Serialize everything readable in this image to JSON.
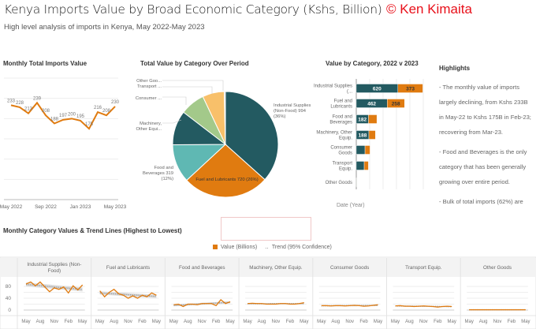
{
  "header": {
    "title": "Kenya Imports Value by Broad Economic Category (Kshs, Billion)",
    "copyright": "© Ken Kimaita",
    "subtitle": "High level analysis of imports in Kenya, May 2022-May 2023"
  },
  "colors": {
    "orange": "#e07b10",
    "dark_teal": "#235a61",
    "light_teal": "#5fb8b3",
    "green": "#a3c98a",
    "yellow": "#f8c06a",
    "other_gray": "#c8c8c8",
    "copyright_red": "#e8101a"
  },
  "highlights": {
    "title": "Highlights",
    "paragraphs": [
      "- The monthly value of imports largely declining, from Kshs 233B in May-22 to Kshs 175B in Feb-23; recovering from Mar-23.",
      "- Food and Beverages is the only category that has been generally growing over entire period.",
      "- Bulk of total imports (62%) are from Industrial Supplies-Non Food (36%, Kshs 994B), and Fuel and Lubricants (26%, Kshs 720B). The"
    ]
  },
  "legend": {
    "value_label": "Value (Billions)",
    "trend_label": "Trend (95% Confidence)"
  },
  "chart_data": [
    {
      "type": "line",
      "title": "Monthly Total Imports Value",
      "x": [
        "May 2022",
        "Jun 2022",
        "Jul 2022",
        "Aug 2022",
        "Sep 2022",
        "Oct 2022",
        "Nov 2022",
        "Dec 2022",
        "Jan 2023",
        "Feb 2023",
        "Mar 2023",
        "Apr 2023",
        "May 2023"
      ],
      "values": [
        233,
        228,
        213,
        239,
        208,
        188,
        197,
        200,
        195,
        175,
        216,
        208,
        230
      ],
      "x_tick_labels": [
        "May 2022",
        "Sep 2022",
        "Jan 2023",
        "May 2023"
      ],
      "ylim": [
        0,
        300
      ],
      "grid": true
    },
    {
      "type": "pie",
      "title": "Total Value by Category Over Period",
      "slices": [
        {
          "name": "Industrial Supplies (Non-Food)",
          "value": 994,
          "label": "Industrial Supplies (Non-Food) 994 (36%)"
        },
        {
          "name": "Fuel and Lubricants",
          "value": 720,
          "label": "Fuel and Lubricants 720 (26%)"
        },
        {
          "name": "Food and Beverages",
          "value": 319,
          "label": "Food and Beverages 319 (12%)"
        },
        {
          "name": "Machinery, Other Equip.",
          "value": 286,
          "label": "Machinery, Other Equi..."
        },
        {
          "name": "Consumer Goods",
          "value": 205,
          "label": "Consumer ..."
        },
        {
          "name": "Transport Equip.",
          "value": 181,
          "label": "Transport ..."
        },
        {
          "name": "Other Goods",
          "value": 10,
          "label": "Other Goo..."
        }
      ]
    },
    {
      "type": "bar",
      "title": "Value by Category, 2022 v 2023",
      "xlabel": "Date (Year)",
      "categories": [
        "Industrial Supplies (...",
        "Fuel and Lubricants",
        "Food and Beverages",
        "Machinery, Other Equip.",
        "Consumer Goods",
        "Transport Equip.",
        "Other Goods"
      ],
      "series": [
        {
          "values": [
            620,
            462,
            182,
            188,
            130,
            118,
            6
          ],
          "data_labels": [
            "620",
            "462",
            "182",
            "188",
            "",
            "",
            ""
          ]
        },
        {
          "values": [
            373,
            258,
            125,
            98,
            75,
            63,
            2
          ],
          "data_labels": [
            "373",
            "258",
            "",
            "",
            "",
            "",
            ""
          ]
        }
      ],
      "stacked": true,
      "grid": true
    },
    {
      "type": "line",
      "title": "Monthly Category Values & Trend Lines (Highest to Lowest)",
      "y_ticks": [
        "80",
        "40",
        "0"
      ],
      "ylim": [
        0,
        100
      ],
      "x_tick_labels": [
        "May",
        "Aug",
        "Nov",
        "Feb",
        "May"
      ],
      "panels": [
        {
          "name": "Industrial Supplies (Non-Food)",
          "values": [
            88,
            95,
            82,
            95,
            78,
            62,
            75,
            70,
            78,
            58,
            82,
            68,
            85
          ]
        },
        {
          "name": "Fuel and Lubricants",
          "values": [
            65,
            45,
            60,
            70,
            55,
            50,
            40,
            48,
            40,
            50,
            45,
            58,
            50
          ]
        },
        {
          "name": "Food and Beverages",
          "values": [
            18,
            20,
            12,
            20,
            20,
            18,
            22,
            22,
            22,
            15,
            35,
            22,
            28
          ]
        },
        {
          "name": "Machinery, Other Equip.",
          "values": [
            22,
            23,
            22,
            22,
            20,
            20,
            20,
            22,
            22,
            20,
            20,
            22,
            25
          ]
        },
        {
          "name": "Consumer Goods",
          "values": [
            15,
            15,
            14,
            15,
            15,
            14,
            15,
            16,
            15,
            13,
            14,
            16,
            18
          ]
        },
        {
          "name": "Transport Equip.",
          "values": [
            14,
            15,
            13,
            13,
            12,
            13,
            14,
            13,
            12,
            10,
            12,
            13,
            12
          ]
        },
        {
          "name": "Other Goods",
          "values": [
            1,
            1,
            1,
            1,
            1,
            1,
            1,
            1,
            1,
            1,
            1,
            1,
            1
          ]
        }
      ]
    }
  ]
}
